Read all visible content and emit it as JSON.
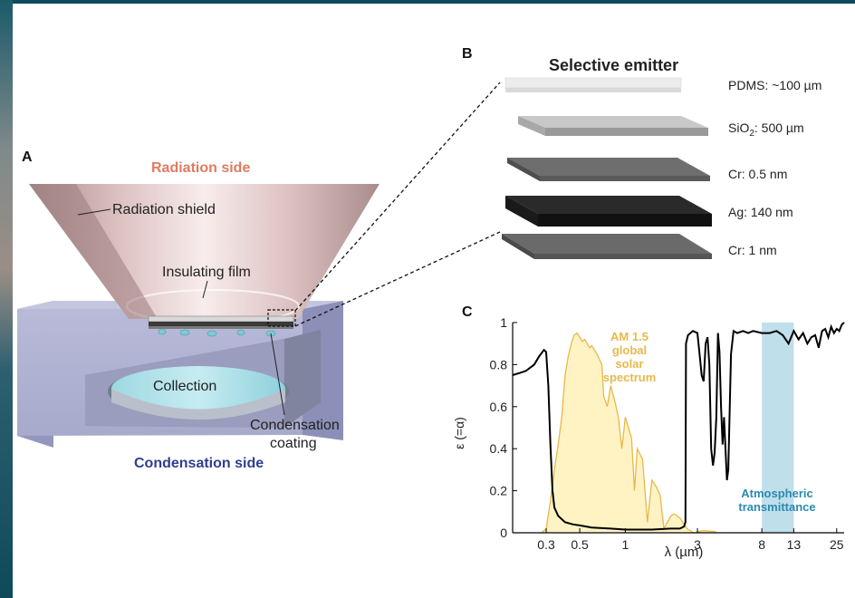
{
  "panelA": {
    "letter": "A",
    "radiation_side": "Radiation side",
    "radiation_shield": "Radiation shield",
    "insulating_film": "Insulating film",
    "collection": "Collection",
    "condensation_coating_1": "Condensation",
    "condensation_coating_2": "coating",
    "condensation_side": "Condensation side",
    "colors": {
      "radiation": "#e07a62",
      "condensation": "#2f3f8f"
    }
  },
  "panelB": {
    "letter": "B",
    "title": "Selective emitter",
    "layers": [
      {
        "label": "PDMS: ~100 µm",
        "color": "#ececec"
      },
      {
        "label_main": "SiO",
        "label_sub": "2",
        "label_rest": ": 500 µm",
        "color": "#b8b8b8"
      },
      {
        "label": "Cr: 0.5 nm",
        "color": "#6a6a6a"
      },
      {
        "label": "Ag: 140 nm",
        "color": "#2a2a2a"
      },
      {
        "label": "Cr: 1 nm",
        "color": "#6a6a6a"
      }
    ]
  },
  "panelC": {
    "letter": "C",
    "ylabel": "ε (=α)",
    "xlabel": "λ (µm)",
    "annotation_solar": [
      "AM 1.5",
      "global",
      "solar",
      "spectrum"
    ],
    "annotation_atm": [
      "Atmospheric",
      "transmittance"
    ],
    "colors": {
      "solar": "#e8b84a",
      "emissivity": "#000000",
      "atm": "#a9d4e4"
    }
  },
  "chart_data": {
    "type": "line",
    "xscale": "log",
    "xlabel": "λ (µm)",
    "ylabel": "ε (=α)",
    "xlim": [
      0.18,
      28
    ],
    "ylim": [
      0,
      1
    ],
    "xticks": [
      0.3,
      0.5,
      1,
      3,
      8,
      13,
      25
    ],
    "xtick_labels": [
      "0.3",
      "0.5",
      "1",
      "3",
      "8",
      "13",
      "25"
    ],
    "yticks": [
      0,
      0.2,
      0.4,
      0.6,
      0.8,
      1
    ],
    "ytick_labels": [
      "0",
      "0.2",
      "0.4",
      "0.6",
      "0.8",
      "1"
    ],
    "atm_window": [
      8,
      13
    ],
    "series": [
      {
        "role": "emissivity",
        "x": [
          0.18,
          0.2,
          0.22,
          0.25,
          0.27,
          0.29,
          0.3,
          0.31,
          0.32,
          0.33,
          0.34,
          0.36,
          0.4,
          0.45,
          0.5,
          0.6,
          0.8,
          1.0,
          1.5,
          2.0,
          2.3,
          2.45,
          2.5,
          2.52,
          2.6,
          2.8,
          3.0,
          3.1,
          3.2,
          3.3,
          3.4,
          3.5,
          3.6,
          3.7,
          3.8,
          3.9,
          4.0,
          4.1,
          4.2,
          4.3,
          4.4,
          4.5,
          4.6,
          4.7,
          4.8,
          5.0,
          5.2,
          5.5,
          6.0,
          6.5,
          7.0,
          8.0,
          9.0,
          10.0,
          11.0,
          12.0,
          13.0,
          14.0,
          15.0,
          16.0,
          17.0,
          18.0,
          19.0,
          20.0,
          21.0,
          22.0,
          23.0,
          24.0,
          25.0,
          26.0,
          27.0,
          28.0
        ],
        "y": [
          0.75,
          0.76,
          0.77,
          0.8,
          0.84,
          0.87,
          0.86,
          0.7,
          0.42,
          0.2,
          0.12,
          0.08,
          0.05,
          0.04,
          0.035,
          0.025,
          0.02,
          0.015,
          0.015,
          0.02,
          0.02,
          0.03,
          0.05,
          0.9,
          0.94,
          0.96,
          0.95,
          0.85,
          0.75,
          0.72,
          0.9,
          0.93,
          0.8,
          0.4,
          0.32,
          0.38,
          0.55,
          0.95,
          0.86,
          0.6,
          0.42,
          0.55,
          0.4,
          0.25,
          0.3,
          0.85,
          0.96,
          0.95,
          0.96,
          0.95,
          0.96,
          0.95,
          0.95,
          0.96,
          0.94,
          0.9,
          0.96,
          0.92,
          0.95,
          0.9,
          0.93,
          0.94,
          0.88,
          0.96,
          0.97,
          0.93,
          0.98,
          0.95,
          0.97,
          0.96,
          0.99,
          1.0
        ]
      },
      {
        "role": "solar spectrum",
        "x": [
          0.28,
          0.3,
          0.32,
          0.34,
          0.36,
          0.38,
          0.4,
          0.42,
          0.44,
          0.46,
          0.48,
          0.5,
          0.52,
          0.54,
          0.56,
          0.58,
          0.6,
          0.65,
          0.7,
          0.72,
          0.76,
          0.8,
          0.85,
          0.9,
          0.95,
          1.0,
          1.1,
          1.15,
          1.2,
          1.3,
          1.4,
          1.5,
          1.6,
          1.7,
          1.8,
          1.9,
          2.0,
          2.1,
          2.2,
          2.3,
          2.4,
          2.5,
          2.6,
          2.7,
          2.8,
          2.9,
          3.0,
          3.3,
          3.6,
          3.9,
          4.0
        ],
        "y": [
          0.0,
          0.02,
          0.15,
          0.3,
          0.42,
          0.55,
          0.75,
          0.84,
          0.9,
          0.94,
          0.95,
          0.93,
          0.91,
          0.92,
          0.9,
          0.88,
          0.89,
          0.85,
          0.8,
          0.65,
          0.6,
          0.7,
          0.63,
          0.55,
          0.4,
          0.55,
          0.45,
          0.2,
          0.4,
          0.35,
          0.05,
          0.25,
          0.22,
          0.18,
          0.02,
          0.05,
          0.08,
          0.09,
          0.08,
          0.07,
          0.05,
          0.03,
          0.015,
          0.01,
          0.0,
          0.0,
          0.005,
          0.01,
          0.008,
          0.006,
          0.0
        ]
      }
    ]
  }
}
